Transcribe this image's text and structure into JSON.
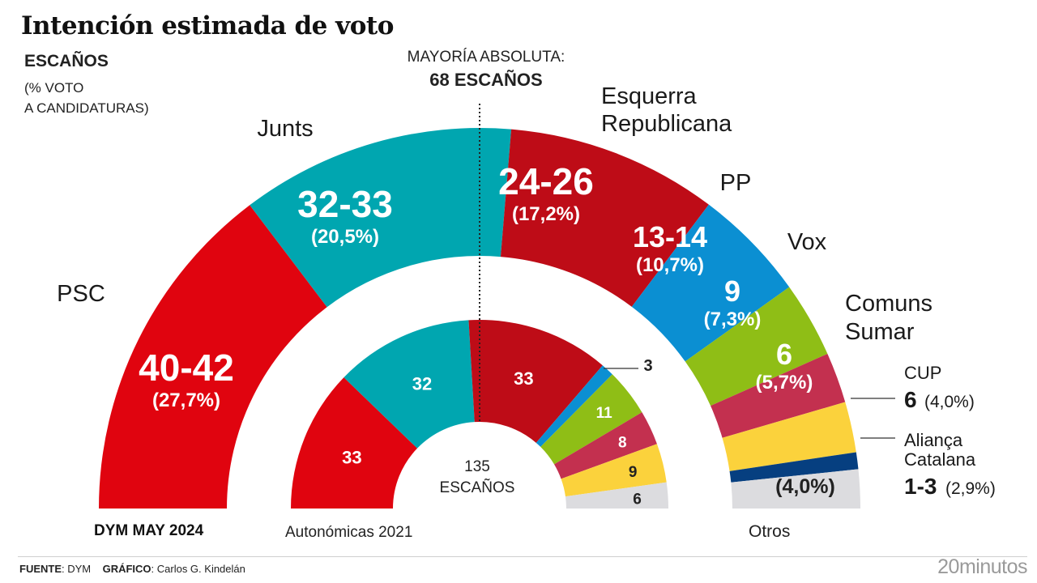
{
  "header": {
    "title": "Intención estimada de voto",
    "subtitle_bold": "ESCAÑOS",
    "subtitle_line1": "(% VOTO",
    "subtitle_line2": "A CANDIDATURAS)",
    "majority_label": "MAYORÍA ABSOLUTA:",
    "majority_value": "68 ESCAÑOS"
  },
  "captions": {
    "poll": "DYM MAY 2024",
    "previous": "Autonómicas 2021",
    "otros": "Otros"
  },
  "footer": {
    "source_label": "FUENTE",
    "source_value": ": DYM",
    "graphic_label": "GRÁFICO",
    "graphic_value": ": Carlos G. Kindelán",
    "brand": "20minutos"
  },
  "chart_data": [
    {
      "type": "pie",
      "variant": "semicircle-donut",
      "title": "DYM MAY 2024",
      "total_seats": 135,
      "majority": 68,
      "series": [
        {
          "name": "PSC",
          "seats_label": "40-42",
          "seats": 41,
          "vote_pct": "27,7%",
          "color": "#e0040f"
        },
        {
          "name": "Junts",
          "seats_label": "32-33",
          "seats": 32.5,
          "vote_pct": "20,5%",
          "color": "#00a6b0"
        },
        {
          "name": "Esquerra Republicana",
          "seats_label": "24-26",
          "seats": 25,
          "vote_pct": "17,2%",
          "color": "#be0c17"
        },
        {
          "name": "PP",
          "seats_label": "13-14",
          "seats": 13.5,
          "vote_pct": "10,7%",
          "color": "#0b8fd2"
        },
        {
          "name": "Vox",
          "seats_label": "9",
          "seats": 9,
          "vote_pct": "7,3%",
          "color": "#8fbe16"
        },
        {
          "name": "Comuns Sumar",
          "seats_label": "6",
          "seats": 6,
          "vote_pct": "5,7%",
          "color": "#c3304f"
        },
        {
          "name": "CUP",
          "seats_label": "6",
          "seats": 6,
          "vote_pct": "4,0%",
          "color": "#fbd23c"
        },
        {
          "name": "Aliança Catalana",
          "seats_label": "1-3",
          "seats": 2,
          "vote_pct": "2,9%",
          "color": "#063f80"
        },
        {
          "name": "Otros",
          "seats_label": "",
          "seats": 0,
          "vote_pct": "4,0%",
          "color": "#dcdcdf"
        }
      ]
    },
    {
      "type": "pie",
      "variant": "semicircle-donut",
      "title": "Autonómicas 2021",
      "total_seats": 135,
      "center_label_1": "135",
      "center_label_2": "ESCAÑOS",
      "series": [
        {
          "name": "PSC",
          "seats": 33,
          "color": "#e0040f"
        },
        {
          "name": "Junts",
          "seats": 32,
          "color": "#00a6b0"
        },
        {
          "name": "Esquerra Republicana",
          "seats": 33,
          "color": "#be0c17"
        },
        {
          "name": "PP",
          "seats": 3,
          "color": "#0b8fd2"
        },
        {
          "name": "Vox",
          "seats": 11,
          "color": "#8fbe16"
        },
        {
          "name": "Comuns Sumar",
          "seats": 8,
          "color": "#c3304f"
        },
        {
          "name": "CUP",
          "seats": 9,
          "color": "#fbd23c"
        },
        {
          "name": "Otros",
          "seats": 6,
          "color": "#dcdcdf"
        }
      ]
    }
  ]
}
